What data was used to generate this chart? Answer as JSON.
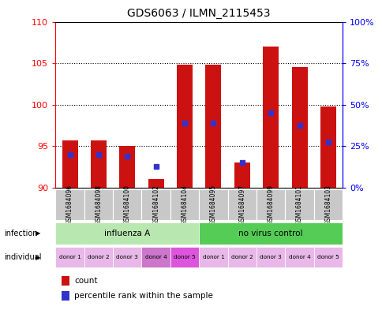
{
  "title": "GDS6063 / ILMN_2115453",
  "samples": [
    "GSM1684096",
    "GSM1684098",
    "GSM1684100",
    "GSM1684102",
    "GSM1684104",
    "GSM1684095",
    "GSM1684097",
    "GSM1684099",
    "GSM1684101",
    "GSM1684103"
  ],
  "bar_heights": [
    95.7,
    95.7,
    95.0,
    91.0,
    104.8,
    104.8,
    93.0,
    107.0,
    104.5,
    99.8
  ],
  "blue_values": [
    94.0,
    94.0,
    93.8,
    92.5,
    97.8,
    97.8,
    93.0,
    99.0,
    97.5,
    95.5
  ],
  "bar_bottom": 90,
  "ylim_left": [
    90,
    110
  ],
  "ylim_right": [
    0,
    100
  ],
  "yticks_left": [
    90,
    95,
    100,
    105,
    110
  ],
  "yticks_right": [
    0,
    25,
    50,
    75,
    100
  ],
  "bar_color": "#cc1111",
  "blue_color": "#3333cc",
  "infection_groups": [
    {
      "label": "influenza A",
      "start": 0,
      "end": 5,
      "color": "#b8e8b0"
    },
    {
      "label": "no virus control",
      "start": 5,
      "end": 10,
      "color": "#55cc55"
    }
  ],
  "individual_labels": [
    "donor 1",
    "donor 2",
    "donor 3",
    "donor 4",
    "donor 5",
    "donor 1",
    "donor 2",
    "donor 3",
    "donor 4",
    "donor 5"
  ],
  "ind_colors": [
    "#e8b8e8",
    "#e8b8e8",
    "#e8b8e8",
    "#cc77cc",
    "#dd55dd",
    "#e8b8e8",
    "#e8b8e8",
    "#e8b8e8",
    "#e8b8e8",
    "#e8b8e8"
  ],
  "legend_count_label": "count",
  "legend_percentile_label": "percentile rank within the sample",
  "infection_label": "infection",
  "individual_label": "individual",
  "bar_width": 0.55,
  "grid_lines": [
    95,
    100,
    105
  ],
  "title_fontsize": 10,
  "sample_box_color": "#c8c8c8",
  "fig_bg": "#e8e8e8"
}
